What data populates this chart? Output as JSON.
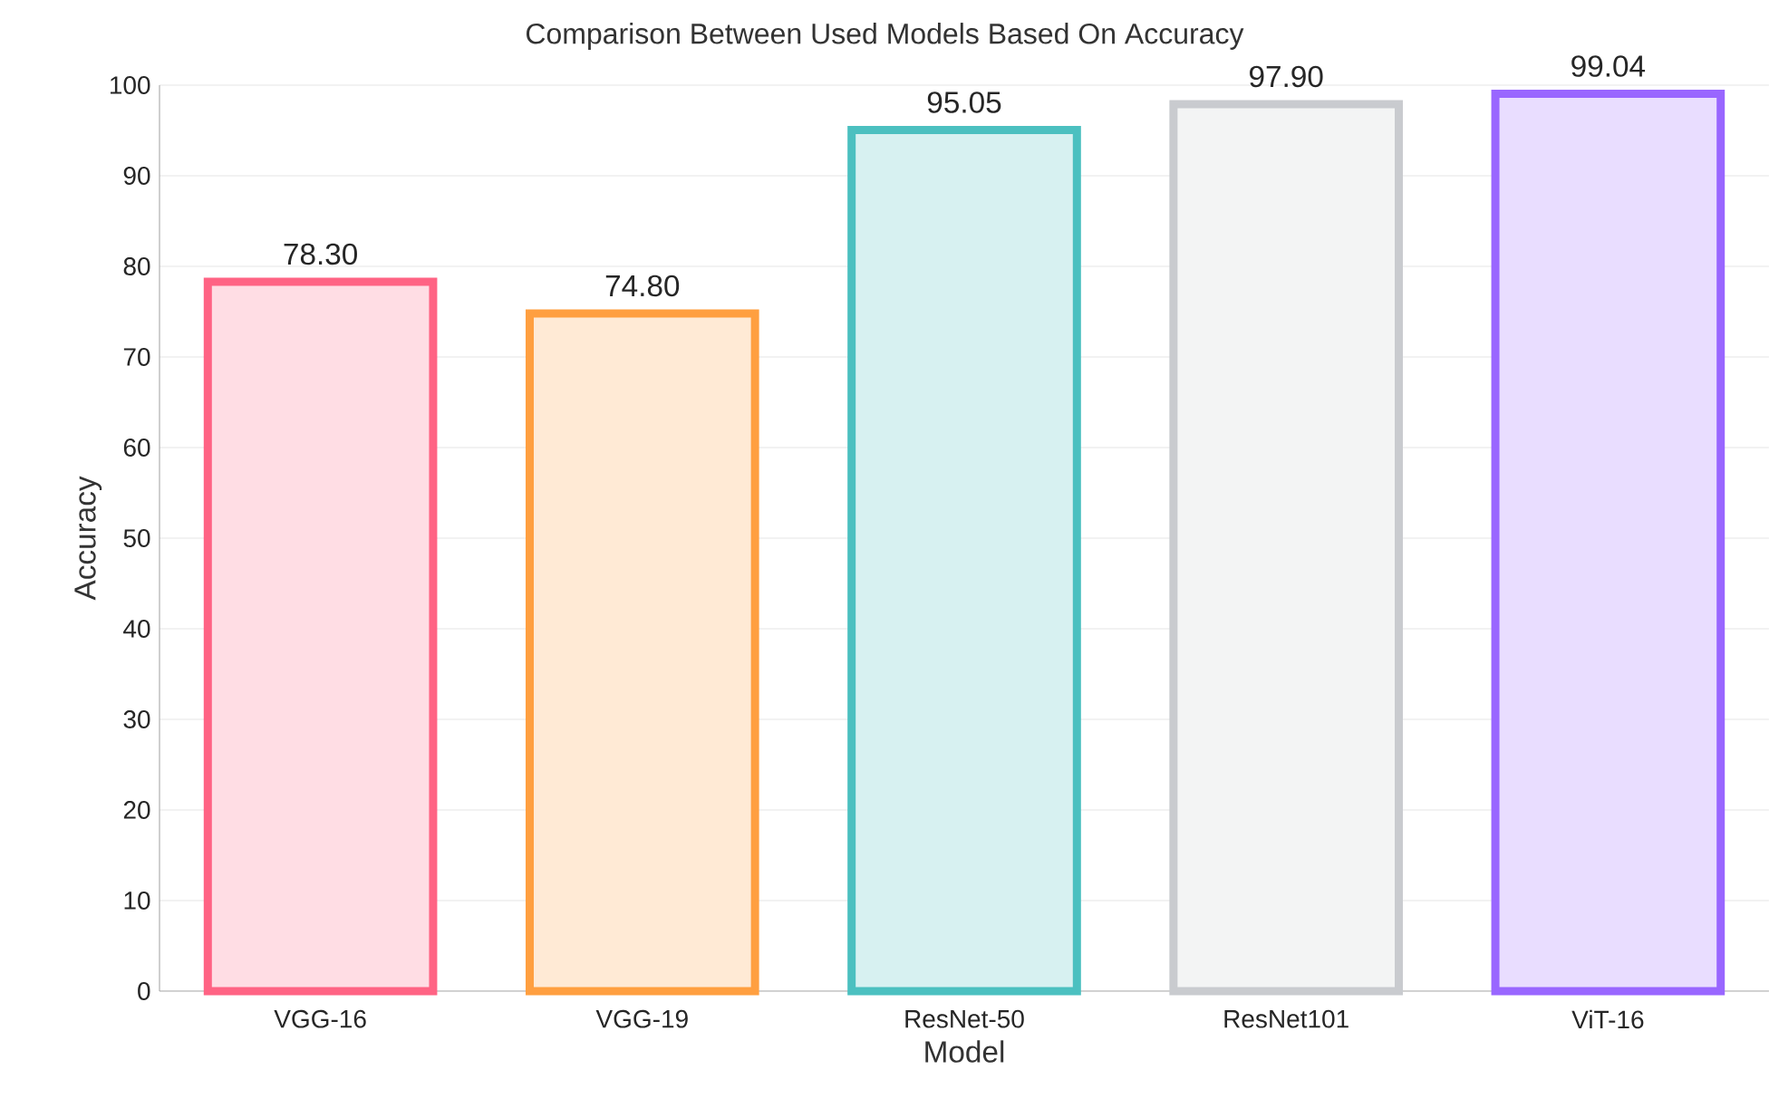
{
  "chart_data": {
    "type": "bar",
    "title": "Comparison Between Used Models Based On Accuracy",
    "xlabel": "Model",
    "ylabel": "Accuracy",
    "categories": [
      "VGG-16",
      "VGG-19",
      "ResNet-50",
      "ResNet101",
      "ViT-16"
    ],
    "values": [
      78.3,
      74.8,
      95.05,
      97.9,
      99.04
    ],
    "value_labels": [
      "78.30",
      "74.80",
      "95.05",
      "97.90",
      "99.04"
    ],
    "colors": [
      "#ff6384",
      "#ff9f40",
      "#4bc0c0",
      "#c9cbcf",
      "#9966ff"
    ],
    "ylim": [
      0,
      100
    ],
    "yticks": [
      0,
      10,
      20,
      30,
      40,
      50,
      60,
      70,
      80,
      90,
      100
    ],
    "grid": "y"
  }
}
